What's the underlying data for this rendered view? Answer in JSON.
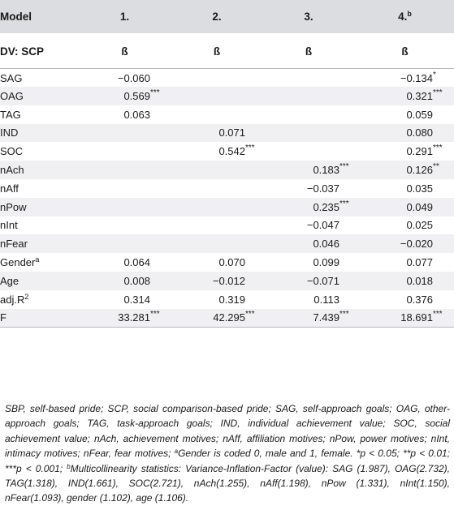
{
  "table": {
    "columns": [
      "Model",
      "1.",
      "2.",
      "3.",
      "4."
    ],
    "column4_superscript": "b",
    "subheader": [
      "DV: SCP",
      "ß",
      "ß",
      "ß",
      "ß"
    ],
    "rows": [
      {
        "label": "SAG",
        "sup": "",
        "cells": [
          {
            "v": "−0.060",
            "s": ""
          },
          {
            "v": "",
            "s": ""
          },
          {
            "v": "",
            "s": ""
          },
          {
            "v": "−0.134",
            "s": "*"
          }
        ]
      },
      {
        "label": "OAG",
        "sup": "",
        "cells": [
          {
            "v": "0.569",
            "s": "***"
          },
          {
            "v": "",
            "s": ""
          },
          {
            "v": "",
            "s": ""
          },
          {
            "v": "0.321",
            "s": "***"
          }
        ]
      },
      {
        "label": "TAG",
        "sup": "",
        "cells": [
          {
            "v": "0.063",
            "s": ""
          },
          {
            "v": "",
            "s": ""
          },
          {
            "v": "",
            "s": ""
          },
          {
            "v": "0.059",
            "s": ""
          }
        ]
      },
      {
        "label": "IND",
        "sup": "",
        "cells": [
          {
            "v": "",
            "s": ""
          },
          {
            "v": "0.071",
            "s": ""
          },
          {
            "v": "",
            "s": ""
          },
          {
            "v": "0.080",
            "s": ""
          }
        ]
      },
      {
        "label": "SOC",
        "sup": "",
        "cells": [
          {
            "v": "",
            "s": ""
          },
          {
            "v": "0.542",
            "s": "***"
          },
          {
            "v": "",
            "s": ""
          },
          {
            "v": "0.291",
            "s": "***"
          }
        ]
      },
      {
        "label": "nAch",
        "sup": "",
        "cells": [
          {
            "v": "",
            "s": ""
          },
          {
            "v": "",
            "s": ""
          },
          {
            "v": "0.183",
            "s": "***"
          },
          {
            "v": "0.126",
            "s": "**"
          }
        ]
      },
      {
        "label": "nAff",
        "sup": "",
        "cells": [
          {
            "v": "",
            "s": ""
          },
          {
            "v": "",
            "s": ""
          },
          {
            "v": "−0.037",
            "s": ""
          },
          {
            "v": "0.035",
            "s": ""
          }
        ]
      },
      {
        "label": "nPow",
        "sup": "",
        "cells": [
          {
            "v": "",
            "s": ""
          },
          {
            "v": "",
            "s": ""
          },
          {
            "v": "0.235",
            "s": "***"
          },
          {
            "v": "0.049",
            "s": ""
          }
        ]
      },
      {
        "label": "nInt",
        "sup": "",
        "cells": [
          {
            "v": "",
            "s": ""
          },
          {
            "v": "",
            "s": ""
          },
          {
            "v": "−0.047",
            "s": ""
          },
          {
            "v": "0.025",
            "s": ""
          }
        ]
      },
      {
        "label": "nFear",
        "sup": "",
        "cells": [
          {
            "v": "",
            "s": ""
          },
          {
            "v": "",
            "s": ""
          },
          {
            "v": "0.046",
            "s": ""
          },
          {
            "v": "−0.020",
            "s": ""
          }
        ]
      },
      {
        "label": "Gender",
        "sup": "a",
        "cells": [
          {
            "v": "0.064",
            "s": ""
          },
          {
            "v": "0.070",
            "s": ""
          },
          {
            "v": "0.099",
            "s": ""
          },
          {
            "v": "0.077",
            "s": ""
          }
        ]
      },
      {
        "label": "Age",
        "sup": "",
        "cells": [
          {
            "v": "0.008",
            "s": ""
          },
          {
            "v": "−0.012",
            "s": ""
          },
          {
            "v": "−0.071",
            "s": ""
          },
          {
            "v": "0.018",
            "s": ""
          }
        ]
      },
      {
        "label": "adj.R",
        "sup": "2",
        "cells": [
          {
            "v": "0.314",
            "s": ""
          },
          {
            "v": "0.319",
            "s": ""
          },
          {
            "v": "0.113",
            "s": ""
          },
          {
            "v": "0.376",
            "s": ""
          }
        ]
      },
      {
        "label": "F",
        "sup": "",
        "cells": [
          {
            "v": "33.281",
            "s": "***"
          },
          {
            "v": "42.295",
            "s": "***"
          },
          {
            "v": "7.439",
            "s": "***"
          },
          {
            "v": "18.691",
            "s": "***"
          }
        ]
      }
    ]
  },
  "footnote": {
    "abbreviations": "SBP, self-based pride; SCP, social comparison-based pride; SAG, self-approach goals; OAG, other-approach goals; TAG, task-approach goals; IND, individual achievement value; SOC, social achievement value; nAch, achievement motives; nAff, affiliation motives; nPow, power motives; nInt, intimacy motives; nFear, fear motives; ",
    "a_mark": "a",
    "a_text": "Gender is coded 0, male and 1, female. *p < 0.05; **p < 0.01; ***p < 0.001; ",
    "b_mark": "b",
    "b_text": "Multicollinearity statistics: Variance-Inflation-Factor (value): SAG (1.987), OAG(2.732), TAG(1.318), IND(1.661), SOC(2.721), nAch(1.255), nAff(1.198), nPow (1.331), nInt(1.150), nFear(1.093), gender (1.102), age (1.106)."
  }
}
